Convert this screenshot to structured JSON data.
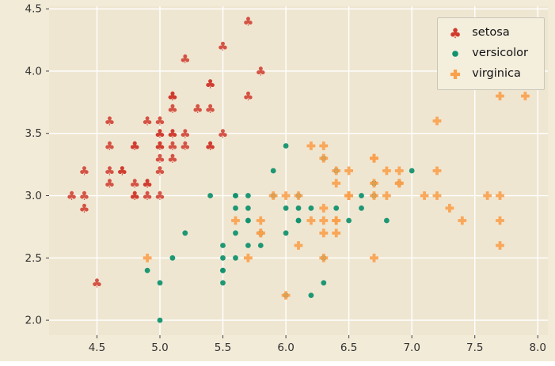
{
  "figure": {
    "background": "#f2ebd8",
    "plot_background": "#efe6d1",
    "grid_color": "#ffffff",
    "tick_color": "#444444",
    "tick_label_color": "#333333"
  },
  "legend": {
    "position": "upper right",
    "entries": [
      "setosa",
      "versicolor",
      "virginica"
    ]
  },
  "chart_data": {
    "type": "scatter",
    "title": "",
    "xlabel": "",
    "ylabel": "",
    "xlim": [
      4.12,
      8.08
    ],
    "ylim": [
      1.88,
      4.52
    ],
    "xticks": [
      4.5,
      5.0,
      5.5,
      6.0,
      6.5,
      7.0,
      7.5,
      8.0
    ],
    "yticks": [
      2.0,
      2.5,
      3.0,
      3.5,
      4.0,
      4.5
    ],
    "grid": true,
    "legend_position": "upper right",
    "series": [
      {
        "name": "setosa",
        "marker": "club",
        "color": "#d03a2d",
        "opacity": 0.85,
        "points": [
          [
            5.1,
            3.5
          ],
          [
            4.9,
            3.0
          ],
          [
            4.7,
            3.2
          ],
          [
            4.6,
            3.1
          ],
          [
            5.0,
            3.6
          ],
          [
            5.4,
            3.9
          ],
          [
            4.6,
            3.4
          ],
          [
            5.0,
            3.4
          ],
          [
            4.4,
            2.9
          ],
          [
            4.9,
            3.1
          ],
          [
            5.4,
            3.7
          ],
          [
            4.8,
            3.4
          ],
          [
            4.8,
            3.0
          ],
          [
            4.3,
            3.0
          ],
          [
            5.8,
            4.0
          ],
          [
            5.7,
            4.4
          ],
          [
            5.4,
            3.9
          ],
          [
            5.1,
            3.5
          ],
          [
            5.7,
            3.8
          ],
          [
            5.1,
            3.8
          ],
          [
            5.4,
            3.4
          ],
          [
            5.1,
            3.7
          ],
          [
            4.6,
            3.6
          ],
          [
            5.1,
            3.3
          ],
          [
            4.8,
            3.4
          ],
          [
            5.0,
            3.0
          ],
          [
            5.0,
            3.4
          ],
          [
            5.2,
            3.5
          ],
          [
            5.2,
            3.4
          ],
          [
            4.7,
            3.2
          ],
          [
            4.8,
            3.1
          ],
          [
            5.4,
            3.4
          ],
          [
            5.2,
            4.1
          ],
          [
            5.5,
            4.2
          ],
          [
            4.9,
            3.1
          ],
          [
            5.0,
            3.2
          ],
          [
            5.5,
            3.5
          ],
          [
            4.9,
            3.6
          ],
          [
            4.4,
            3.0
          ],
          [
            5.1,
            3.4
          ],
          [
            5.0,
            3.5
          ],
          [
            4.5,
            2.3
          ],
          [
            4.4,
            3.2
          ],
          [
            5.0,
            3.5
          ],
          [
            5.1,
            3.8
          ],
          [
            4.8,
            3.0
          ],
          [
            5.1,
            3.8
          ],
          [
            4.6,
            3.2
          ],
          [
            5.3,
            3.7
          ],
          [
            5.0,
            3.3
          ]
        ]
      },
      {
        "name": "versicolor",
        "marker": "circle",
        "color": "#12926f",
        "opacity": 0.95,
        "points": [
          [
            7.0,
            3.2
          ],
          [
            6.4,
            3.2
          ],
          [
            6.9,
            3.1
          ],
          [
            5.5,
            2.3
          ],
          [
            6.5,
            2.8
          ],
          [
            5.7,
            2.8
          ],
          [
            6.3,
            3.3
          ],
          [
            4.9,
            2.4
          ],
          [
            6.6,
            2.9
          ],
          [
            5.2,
            2.7
          ],
          [
            5.0,
            2.0
          ],
          [
            5.9,
            3.0
          ],
          [
            6.0,
            2.2
          ],
          [
            6.1,
            2.9
          ],
          [
            5.6,
            2.9
          ],
          [
            6.7,
            3.1
          ],
          [
            5.6,
            3.0
          ],
          [
            5.8,
            2.7
          ],
          [
            6.2,
            2.2
          ],
          [
            5.6,
            2.5
          ],
          [
            5.9,
            3.2
          ],
          [
            6.1,
            2.8
          ],
          [
            6.3,
            2.5
          ],
          [
            6.1,
            2.8
          ],
          [
            6.4,
            2.9
          ],
          [
            6.6,
            3.0
          ],
          [
            6.8,
            2.8
          ],
          [
            6.7,
            3.0
          ],
          [
            6.0,
            2.9
          ],
          [
            5.7,
            2.6
          ],
          [
            5.5,
            2.4
          ],
          [
            5.5,
            2.4
          ],
          [
            5.8,
            2.7
          ],
          [
            6.0,
            2.7
          ],
          [
            5.4,
            3.0
          ],
          [
            6.0,
            3.4
          ],
          [
            6.7,
            3.1
          ],
          [
            6.3,
            2.3
          ],
          [
            5.6,
            3.0
          ],
          [
            5.5,
            2.5
          ],
          [
            5.5,
            2.6
          ],
          [
            6.1,
            3.0
          ],
          [
            5.8,
            2.6
          ],
          [
            5.0,
            2.3
          ],
          [
            5.6,
            2.7
          ],
          [
            5.7,
            3.0
          ],
          [
            5.7,
            2.9
          ],
          [
            6.2,
            2.9
          ],
          [
            5.1,
            2.5
          ],
          [
            5.7,
            2.8
          ]
        ]
      },
      {
        "name": "virginica",
        "marker": "plus",
        "color": "#f9a04b",
        "opacity": 0.9,
        "points": [
          [
            6.3,
            3.3
          ],
          [
            5.8,
            2.7
          ],
          [
            7.1,
            3.0
          ],
          [
            6.3,
            2.9
          ],
          [
            6.5,
            3.0
          ],
          [
            7.6,
            3.0
          ],
          [
            4.9,
            2.5
          ],
          [
            7.3,
            2.9
          ],
          [
            6.7,
            2.5
          ],
          [
            7.2,
            3.6
          ],
          [
            6.5,
            3.2
          ],
          [
            6.4,
            2.7
          ],
          [
            6.8,
            3.0
          ],
          [
            5.7,
            2.5
          ],
          [
            5.8,
            2.8
          ],
          [
            6.4,
            3.2
          ],
          [
            6.5,
            3.0
          ],
          [
            7.7,
            3.8
          ],
          [
            7.7,
            2.6
          ],
          [
            6.0,
            2.2
          ],
          [
            6.9,
            3.2
          ],
          [
            5.6,
            2.8
          ],
          [
            7.7,
            2.8
          ],
          [
            6.3,
            2.7
          ],
          [
            6.7,
            3.3
          ],
          [
            7.2,
            3.2
          ],
          [
            6.2,
            2.8
          ],
          [
            6.1,
            3.0
          ],
          [
            6.4,
            2.8
          ],
          [
            7.2,
            3.0
          ],
          [
            7.4,
            2.8
          ],
          [
            7.9,
            3.8
          ],
          [
            6.4,
            2.8
          ],
          [
            6.3,
            2.8
          ],
          [
            6.1,
            2.6
          ],
          [
            7.7,
            3.0
          ],
          [
            6.3,
            3.4
          ],
          [
            6.4,
            3.1
          ],
          [
            6.0,
            3.0
          ],
          [
            6.9,
            3.1
          ],
          [
            6.7,
            3.1
          ],
          [
            6.9,
            3.1
          ],
          [
            5.8,
            2.7
          ],
          [
            6.8,
            3.2
          ],
          [
            6.7,
            3.3
          ],
          [
            6.7,
            3.0
          ],
          [
            6.3,
            2.5
          ],
          [
            6.5,
            3.0
          ],
          [
            6.2,
            3.4
          ],
          [
            5.9,
            3.0
          ]
        ]
      }
    ]
  }
}
